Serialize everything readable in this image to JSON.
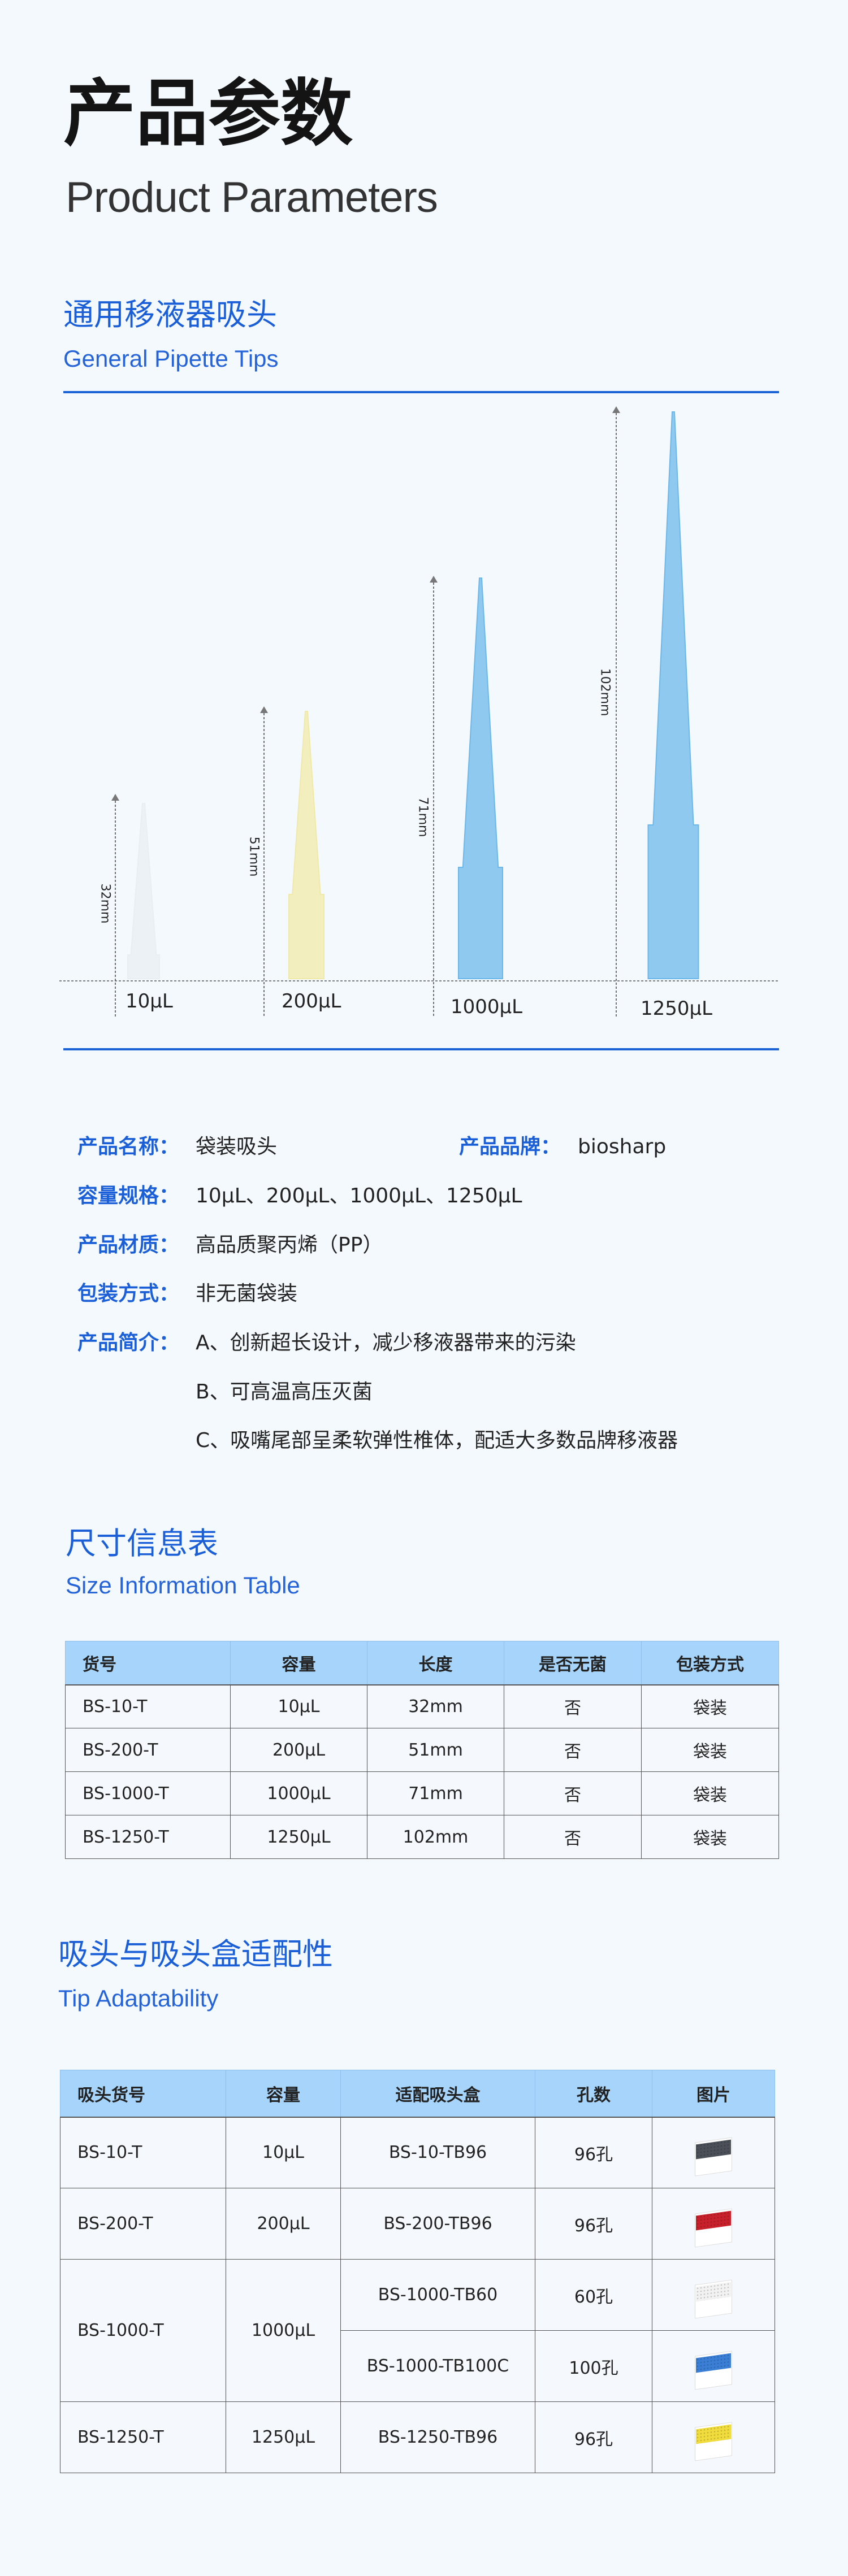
{
  "header": {
    "title": "产品参数",
    "subtitle": "Product Parameters"
  },
  "general_tips": {
    "title_cn": "通用移液器吸头",
    "title_en": "General Pipette Tips",
    "tips": [
      {
        "volume": "10μL",
        "length": "32mm",
        "color": "#e8eef2"
      },
      {
        "volume": "200μL",
        "length": "51mm",
        "color": "#f1e9a8"
      },
      {
        "volume": "1000μL",
        "length": "71mm",
        "color": "#6db8ea"
      },
      {
        "volume": "1250μL",
        "length": "102mm",
        "color": "#6db8ea"
      }
    ]
  },
  "info": {
    "name_label": "产品名称：",
    "name_value": "袋装吸头",
    "brand_label": "产品品牌：",
    "brand_value": "biosharp",
    "spec_label": "容量规格：",
    "spec_value": "10μL、200μL、1000μL、1250μL",
    "material_label": "产品材质：",
    "material_value": "高品质聚丙烯（PP）",
    "pack_label": "包装方式：",
    "pack_value": "非无菌袋装",
    "intro_label": "产品简介：",
    "intro": [
      "A、创新超长设计，减少移液器带来的污染",
      "B、可高温高压灭菌",
      "C、吸嘴尾部呈柔软弹性椎体，配适大多数品牌移液器"
    ]
  },
  "size_table": {
    "title_cn": "尺寸信息表",
    "title_en": "Size Information Table",
    "headers": [
      "货号",
      "容量",
      "长度",
      "是否无菌",
      "包装方式"
    ],
    "rows": [
      [
        "BS-10-T",
        "10μL",
        "32mm",
        "否",
        "袋装"
      ],
      [
        "BS-200-T",
        "200μL",
        "51mm",
        "否",
        "袋装"
      ],
      [
        "BS-1000-T",
        "1000μL",
        "71mm",
        "否",
        "袋装"
      ],
      [
        "BS-1250-T",
        "1250μL",
        "102mm",
        "否",
        "袋装"
      ]
    ]
  },
  "adapt_table": {
    "title_cn": "吸头与吸头盒适配性",
    "title_en": "Tip Adaptability",
    "headers": [
      "吸头货号",
      "容量",
      "适配吸头盒",
      "孔数",
      "图片"
    ],
    "rows": [
      {
        "tip": "BS-10-T",
        "volume": "10μL",
        "box": "BS-10-TB96",
        "holes": "96孔",
        "rack_color": "#4a4f58"
      },
      {
        "tip": "BS-200-T",
        "volume": "200μL",
        "box": "BS-200-TB96",
        "holes": "96孔",
        "rack_color": "#c8202a"
      },
      {
        "tip": "BS-1000-T",
        "volume": "1000μL",
        "box": "BS-1000-TB60",
        "holes": "60孔",
        "rack_color": "#f2f2f2"
      },
      {
        "box": "BS-1000-TB100C",
        "holes": "100孔",
        "rack_color": "#3a7fd5"
      },
      {
        "tip": "BS-1250-T",
        "volume": "1250μL",
        "box": "BS-1250-TB96",
        "holes": "96孔",
        "rack_color": "#f0dc3c"
      }
    ]
  }
}
